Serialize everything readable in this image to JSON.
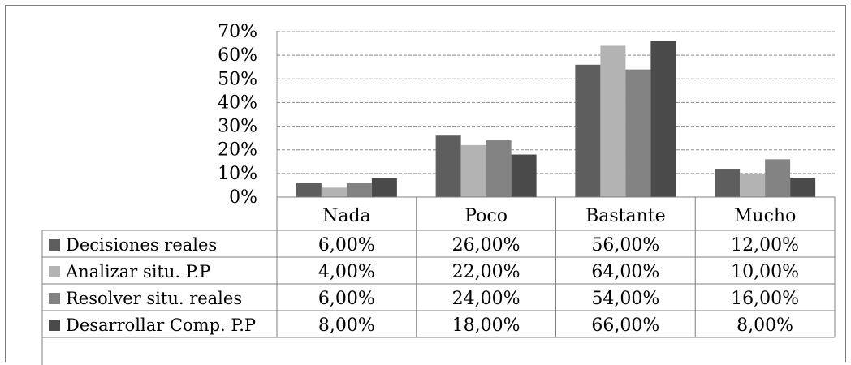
{
  "chart_data": {
    "type": "bar",
    "categories": [
      "Nada",
      "Poco",
      "Bastante",
      "Mucho"
    ],
    "series": [
      {
        "name": "Decisiones reales",
        "values": [
          6,
          26,
          56,
          12
        ],
        "color": "#5e5e5e",
        "labels": [
          "6,00%",
          "26,00%",
          "56,00%",
          "12,00%"
        ]
      },
      {
        "name": "Analizar situ. P.P",
        "values": [
          4,
          22,
          64,
          10
        ],
        "color": "#b3b3b3",
        "labels": [
          "4,00%",
          "22,00%",
          "64,00%",
          "10,00%"
        ]
      },
      {
        "name": "Resolver situ. reales",
        "values": [
          6,
          24,
          54,
          16
        ],
        "color": "#838383",
        "labels": [
          "6,00%",
          "24,00%",
          "54,00%",
          "16,00%"
        ]
      },
      {
        "name": "Desarrollar Comp. P.P",
        "values": [
          8,
          18,
          66,
          8
        ],
        "color": "#4a4a4a",
        "labels": [
          "8,00%",
          "18,00%",
          "66,00%",
          "8,00%"
        ]
      }
    ],
    "yticks": [
      "0%",
      "10%",
      "20%",
      "30%",
      "40%",
      "50%",
      "60%",
      "70%"
    ],
    "ylim": [
      0,
      70
    ],
    "grid": true,
    "legend": "data-table"
  }
}
